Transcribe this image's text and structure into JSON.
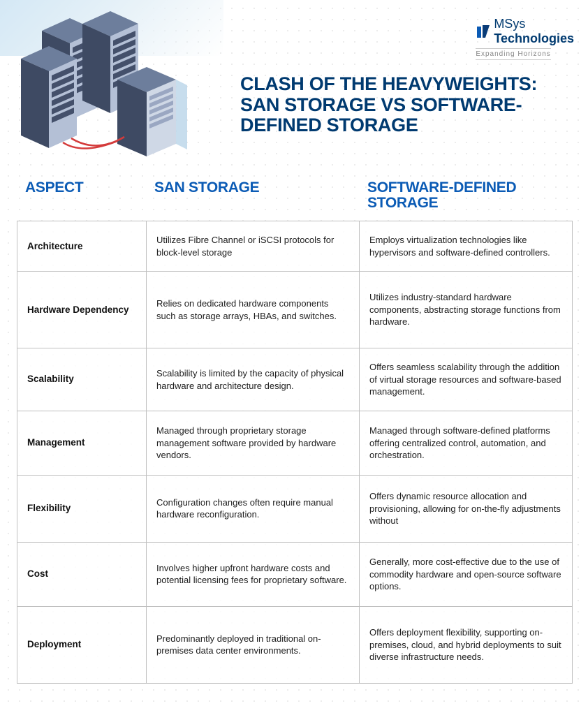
{
  "brand": {
    "name1": "MSys",
    "name2": "Technologies",
    "tagline": "Expanding Horizons",
    "mark_color1": "#0b5bb5",
    "mark_color2": "#0a3c78"
  },
  "title": "CLASH OF THE HEAVYWEIGHTS: SAN STORAGE VS SOFTWARE-DEFINED STORAGE",
  "colors": {
    "heading": "#003a70",
    "column_header": "#0b5bb5",
    "border": "#bfbfbf",
    "dots": "#e5e5e5",
    "text": "#202020"
  },
  "table": {
    "columns": [
      "ASPECT",
      "SAN STORAGE",
      "SOFTWARE-DEFINED STORAGE"
    ],
    "rows": [
      {
        "aspect": "Architecture",
        "san": "Utilizes Fibre Channel or iSCSI protocols for block-level storage",
        "sds": "Employs virtualization technologies like hypervisors and software-defined controllers."
      },
      {
        "aspect": "Hardware Dependency",
        "san": "Relies on dedicated hardware components such as storage arrays, HBAs, and switches.",
        "sds": "Utilizes industry-standard hardware components, abstracting storage functions from hardware."
      },
      {
        "aspect": "Scalability",
        "san": "Scalability is limited by the capacity of physical hardware and architecture design.",
        "sds": "Offers seamless scalability through the addition of virtual storage resources and software-based management."
      },
      {
        "aspect": "Management",
        "san": "Managed through proprietary storage management software provided by hardware vendors.",
        "sds": "Managed through software-defined platforms offering centralized control, automation, and orchestration."
      },
      {
        "aspect": "Flexibility",
        "san": "Configuration changes often require manual hardware reconfiguration.",
        "sds": "Offers dynamic resource allocation and provisioning, allowing for on-the-fly adjustments without"
      },
      {
        "aspect": "Cost",
        "san": "Involves higher upfront hardware costs and potential licensing fees for proprietary software.",
        "sds": "Generally, more cost-effective due to the use of commodity hardware and open-source software options."
      },
      {
        "aspect": "Deployment",
        "san": "Predominantly deployed in traditional on-premises data center environments.",
        "sds": "Offers deployment flexibility, supporting on-premises, cloud, and hybrid deployments to suit diverse infrastructure needs."
      }
    ]
  },
  "servers": {
    "rack_color_top": "#6d7e9c",
    "rack_color_side": "#3e4a63",
    "rack_color_front": "#b4c0d6",
    "cable_color": "#d43b3b",
    "panel_color": "#44506b",
    "slot_color": "#9aa7c2"
  }
}
